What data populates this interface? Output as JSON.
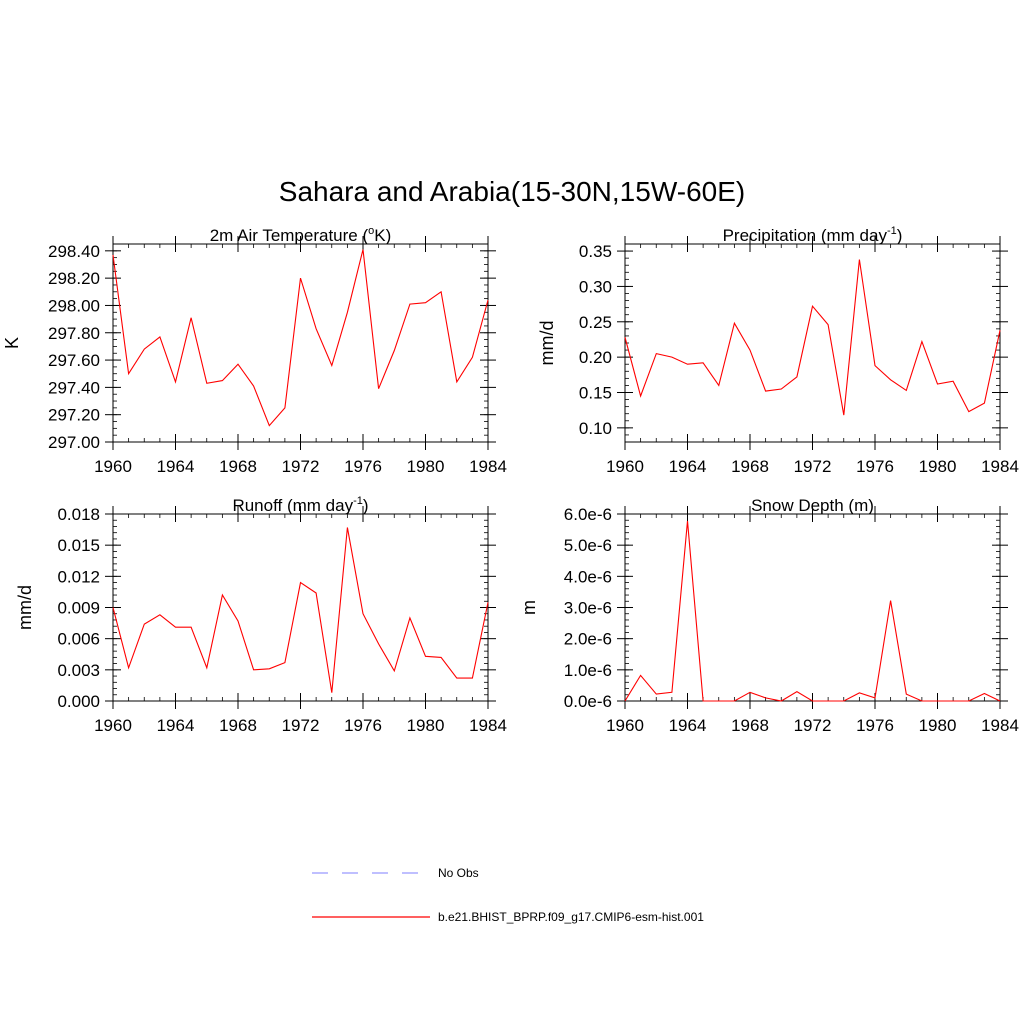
{
  "title": "Sahara and Arabia(15-30N,15W-60E)",
  "colors": {
    "model": "#ff0000",
    "obs": "#9999ff",
    "axis": "#000000"
  },
  "legend": {
    "obs_label": "No Obs",
    "model_label": "b.e21.BHIST_BPRP.f09_g17.CMIP6-esm-hist.001"
  },
  "chart_data": [
    {
      "type": "line",
      "title": "2m Air Temperature (",
      "title_sup": "o",
      "title_tail": "K)",
      "ylabel": "K",
      "xlim": [
        1960,
        1984
      ],
      "ylim": [
        297.0,
        298.45
      ],
      "xticks": [
        1960,
        1964,
        1968,
        1972,
        1976,
        1980,
        1984
      ],
      "yticks": [
        297.0,
        297.2,
        297.4,
        297.6,
        297.8,
        298.0,
        298.2,
        298.4
      ],
      "ytick_labels": [
        "297.00",
        "297.20",
        "297.40",
        "297.60",
        "297.80",
        "298.00",
        "298.20",
        "298.40"
      ],
      "yminor": 0.05,
      "series": [
        {
          "name": "b.e21.BHIST_BPRP.f09_g17.CMIP6-esm-hist.001",
          "x": [
            1960,
            1961,
            1962,
            1963,
            1964,
            1965,
            1966,
            1967,
            1968,
            1969,
            1970,
            1971,
            1972,
            1973,
            1974,
            1975,
            1976,
            1977,
            1978,
            1979,
            1980,
            1981,
            1982,
            1983,
            1984
          ],
          "values": [
            298.37,
            297.5,
            297.68,
            297.77,
            297.44,
            297.91,
            297.43,
            297.45,
            297.57,
            297.41,
            297.12,
            297.25,
            298.2,
            297.83,
            297.56,
            297.95,
            298.41,
            297.39,
            297.67,
            298.01,
            298.02,
            298.1,
            297.44,
            297.62,
            298.04
          ]
        }
      ]
    },
    {
      "type": "line",
      "title": "Precipitation (mm day",
      "title_sup": "-1",
      "title_tail": ")",
      "ylabel": "mm/d",
      "xlim": [
        1960,
        1984
      ],
      "ylim": [
        0.08,
        0.36
      ],
      "xticks": [
        1960,
        1964,
        1968,
        1972,
        1976,
        1980,
        1984
      ],
      "yticks": [
        0.1,
        0.15,
        0.2,
        0.25,
        0.3,
        0.35
      ],
      "ytick_labels": [
        "0.10",
        "0.15",
        "0.20",
        "0.25",
        "0.30",
        "0.35"
      ],
      "yminor": 0.01,
      "series": [
        {
          "name": "b.e21.BHIST_BPRP.f09_g17.CMIP6-esm-hist.001",
          "x": [
            1960,
            1961,
            1962,
            1963,
            1964,
            1965,
            1966,
            1967,
            1968,
            1969,
            1970,
            1971,
            1972,
            1973,
            1974,
            1975,
            1976,
            1977,
            1978,
            1979,
            1980,
            1981,
            1982,
            1983,
            1984
          ],
          "values": [
            0.228,
            0.145,
            0.205,
            0.2,
            0.19,
            0.192,
            0.16,
            0.248,
            0.21,
            0.152,
            0.155,
            0.172,
            0.272,
            0.246,
            0.118,
            0.338,
            0.188,
            0.168,
            0.153,
            0.222,
            0.162,
            0.166,
            0.123,
            0.135,
            0.238
          ]
        }
      ]
    },
    {
      "type": "line",
      "title": "Runoff (mm day",
      "title_sup": "-1",
      "title_tail": ")",
      "ylabel": "mm/d",
      "xlim": [
        1960,
        1984
      ],
      "ylim": [
        0.0,
        0.018
      ],
      "xticks": [
        1960,
        1964,
        1968,
        1972,
        1976,
        1980,
        1984
      ],
      "yticks": [
        0.0,
        0.003,
        0.006,
        0.009,
        0.012,
        0.015,
        0.018
      ],
      "ytick_labels": [
        "0.000",
        "0.003",
        "0.006",
        "0.009",
        "0.012",
        "0.015",
        "0.018"
      ],
      "yminor": 0.0006,
      "series": [
        {
          "name": "b.e21.BHIST_BPRP.f09_g17.CMIP6-esm-hist.001",
          "x": [
            1960,
            1961,
            1962,
            1963,
            1964,
            1965,
            1966,
            1967,
            1968,
            1969,
            1970,
            1971,
            1972,
            1973,
            1974,
            1975,
            1976,
            1977,
            1978,
            1979,
            1980,
            1981,
            1982,
            1983,
            1984
          ],
          "values": [
            0.009,
            0.0032,
            0.0074,
            0.0083,
            0.0071,
            0.0071,
            0.0032,
            0.0102,
            0.0077,
            0.003,
            0.0031,
            0.0037,
            0.0114,
            0.0104,
            0.0008,
            0.0167,
            0.0084,
            0.0055,
            0.0029,
            0.008,
            0.0043,
            0.0042,
            0.0022,
            0.0022,
            0.0095
          ]
        }
      ]
    },
    {
      "type": "line",
      "title": "Snow Depth (m)",
      "title_sup": "",
      "title_tail": "",
      "ylabel": "m",
      "xlim": [
        1960,
        1984
      ],
      "ylim": [
        0.0,
        6e-06
      ],
      "xticks": [
        1960,
        1964,
        1968,
        1972,
        1976,
        1980,
        1984
      ],
      "yticks": [
        0.0,
        1e-06,
        2e-06,
        3e-06,
        4e-06,
        5e-06,
        6e-06
      ],
      "ytick_labels": [
        "0.0e-6",
        "1.0e-6",
        "2.0e-6",
        "3.0e-6",
        "4.0e-6",
        "5.0e-6",
        "6.0e-6"
      ],
      "yminor": 2e-07,
      "series": [
        {
          "name": "b.e21.BHIST_BPRP.f09_g17.CMIP6-esm-hist.001",
          "x": [
            1960,
            1961,
            1962,
            1963,
            1964,
            1965,
            1966,
            1967,
            1968,
            1969,
            1970,
            1971,
            1972,
            1973,
            1974,
            1975,
            1976,
            1977,
            1978,
            1979,
            1980,
            1981,
            1982,
            1983,
            1984
          ],
          "values": [
            0.0,
            8.2e-07,
            2.2e-07,
            2.8e-07,
            5.78e-06,
            0.0,
            0.0,
            0.0,
            2.8e-07,
            1e-07,
            0.0,
            3e-07,
            0.0,
            0.0,
            0.0,
            2.6e-07,
            1e-07,
            3.22e-06,
            2.2e-07,
            0.0,
            0.0,
            0.0,
            0.0,
            2.4e-07,
            0.0
          ]
        }
      ]
    }
  ]
}
